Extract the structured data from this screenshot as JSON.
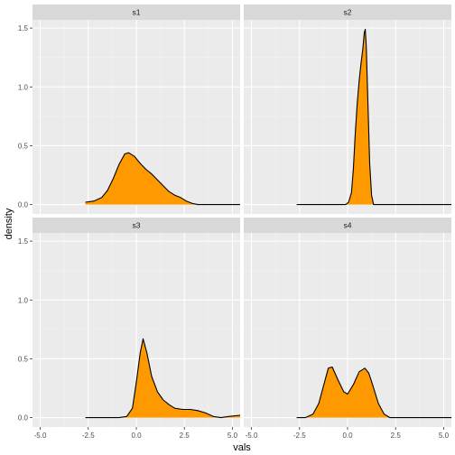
{
  "chart_data": {
    "type": "area",
    "xlabel": "vals",
    "ylabel": "density",
    "xlim": [
      -5.4,
      5.4
    ],
    "ylim": [
      -0.08,
      1.57
    ],
    "x_ticks": [
      -5,
      -2.5,
      0,
      2.5,
      5
    ],
    "x_tick_labels": [
      "-5.0",
      "-2.5",
      "0.0",
      "2.5",
      "5.0"
    ],
    "y_ticks": [
      0,
      0.5,
      1,
      1.5
    ],
    "y_tick_labels": [
      "0.0",
      "0.5",
      "1.0",
      "1.5"
    ],
    "grid": true,
    "fill_color": "#ff9900",
    "line_color": "#000000",
    "panel_background": "#ebebeb",
    "strip_background": "#d9d9d9",
    "panels": [
      {
        "name": "s1",
        "x": [
          -2.65,
          -2.2,
          -1.8,
          -1.5,
          -1.2,
          -0.9,
          -0.6,
          -0.4,
          -0.1,
          0.2,
          0.5,
          0.8,
          1.1,
          1.4,
          1.7,
          2.0,
          2.3,
          2.6,
          2.9,
          3.2,
          5.4
        ],
        "density": [
          0.02,
          0.03,
          0.06,
          0.12,
          0.22,
          0.34,
          0.43,
          0.44,
          0.41,
          0.35,
          0.3,
          0.26,
          0.21,
          0.16,
          0.11,
          0.08,
          0.06,
          0.03,
          0.01,
          0.0,
          0.0
        ]
      },
      {
        "name": "s2",
        "x": [
          -2.65,
          -0.1,
          0.05,
          0.2,
          0.3,
          0.4,
          0.5,
          0.6,
          0.7,
          0.8,
          0.87,
          0.92,
          0.97,
          1.05,
          1.15,
          1.25,
          1.35,
          5.4
        ],
        "density": [
          0.0,
          0.0,
          0.02,
          0.1,
          0.3,
          0.6,
          0.85,
          1.05,
          1.2,
          1.33,
          1.46,
          1.49,
          1.35,
          0.9,
          0.35,
          0.08,
          0.0,
          0.0
        ]
      },
      {
        "name": "s3",
        "x": [
          -2.65,
          -0.9,
          -0.5,
          -0.2,
          0.0,
          0.2,
          0.35,
          0.55,
          0.8,
          1.1,
          1.4,
          1.7,
          2.0,
          2.4,
          2.8,
          3.2,
          3.6,
          4.0,
          4.4,
          4.8,
          5.4
        ],
        "density": [
          0.0,
          0.0,
          0.01,
          0.08,
          0.3,
          0.55,
          0.67,
          0.55,
          0.35,
          0.22,
          0.15,
          0.11,
          0.08,
          0.07,
          0.07,
          0.06,
          0.04,
          0.01,
          0.0,
          0.01,
          0.02
        ]
      },
      {
        "name": "s4",
        "x": [
          -2.65,
          -2.2,
          -1.8,
          -1.5,
          -1.2,
          -1.0,
          -0.8,
          -0.5,
          -0.2,
          0.0,
          0.3,
          0.6,
          0.9,
          1.1,
          1.3,
          1.6,
          1.9,
          2.2,
          2.5,
          5.4
        ],
        "density": [
          0.0,
          0.0,
          0.03,
          0.12,
          0.3,
          0.42,
          0.43,
          0.32,
          0.22,
          0.2,
          0.28,
          0.39,
          0.42,
          0.38,
          0.28,
          0.12,
          0.03,
          0.0,
          0.0,
          0.0
        ]
      }
    ]
  }
}
